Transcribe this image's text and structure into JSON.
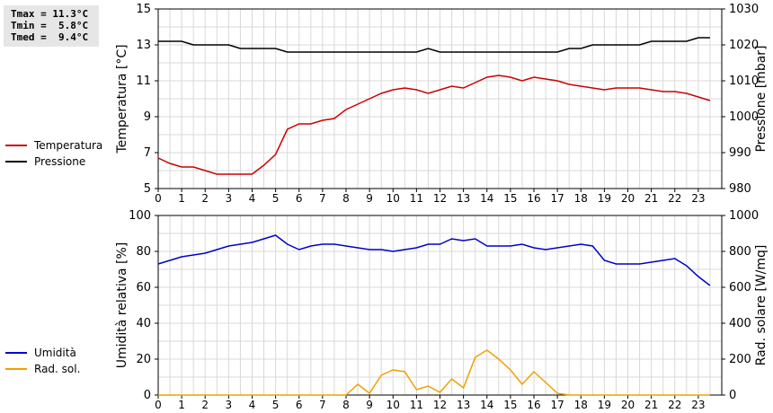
{
  "stats": {
    "tmax": "Tmax = 11.3°C",
    "tmin": "Tmin =  5.8°C",
    "tmed": "Tmed =  9.4°C"
  },
  "legend_top": [
    {
      "label": "Temperatura",
      "color": "#cc0000"
    },
    {
      "label": "Pressione",
      "color": "#000000"
    }
  ],
  "legend_bottom": [
    {
      "label": "Umidità",
      "color": "#0000cc"
    },
    {
      "label": "Rad. sol.",
      "color": "#f0a000"
    }
  ],
  "chart_data": [
    {
      "type": "line",
      "ylabel": "Temperatura [°C]",
      "y2label": "Pressione [mbar]",
      "xlim": [
        0,
        24
      ],
      "ylim": [
        5,
        15
      ],
      "y2lim": [
        980,
        1030
      ],
      "x_ticks": [
        "0",
        "1",
        "2",
        "3",
        "4",
        "5",
        "6",
        "7",
        "8",
        "9",
        "10",
        "11",
        "12",
        "13",
        "14",
        "15",
        "16",
        "17",
        "18",
        "19",
        "20",
        "21",
        "22",
        "23"
      ],
      "y_ticks": [
        "5",
        "7",
        "9",
        "11",
        "13",
        "15"
      ],
      "y2_ticks": [
        "980",
        "990",
        "1000",
        "1010",
        "1020",
        "1030"
      ],
      "grid": true,
      "series": [
        {
          "name": "Temperatura",
          "axis": "left",
          "color": "#cc0000",
          "x": [
            0,
            0.5,
            1,
            1.5,
            2,
            2.5,
            3,
            3.5,
            4,
            4.5,
            5,
            5.5,
            6,
            6.5,
            7,
            7.5,
            8,
            8.5,
            9,
            9.5,
            10,
            10.5,
            11,
            11.5,
            12,
            12.5,
            13,
            13.5,
            14,
            14.5,
            15,
            15.5,
            16,
            16.5,
            17,
            17.5,
            18,
            18.5,
            19,
            19.5,
            20,
            20.5,
            21,
            21.5,
            22,
            22.5,
            23,
            23.5
          ],
          "values": [
            6.7,
            6.4,
            6.2,
            6.2,
            6.0,
            5.8,
            5.8,
            5.8,
            5.8,
            6.3,
            6.9,
            8.3,
            8.6,
            8.6,
            8.8,
            8.9,
            9.4,
            9.7,
            10.0,
            10.3,
            10.5,
            10.6,
            10.5,
            10.3,
            10.5,
            10.7,
            10.6,
            10.9,
            11.2,
            11.3,
            11.2,
            11.0,
            11.2,
            11.1,
            11.0,
            10.8,
            10.7,
            10.6,
            10.5,
            10.6,
            10.6,
            10.6,
            10.5,
            10.4,
            10.4,
            10.3,
            10.1,
            9.9
          ]
        },
        {
          "name": "Pressione",
          "axis": "right",
          "color": "#000000",
          "x": [
            0,
            0.5,
            1,
            1.5,
            2,
            2.5,
            3,
            3.5,
            4,
            4.5,
            5,
            5.5,
            6,
            6.5,
            7,
            7.5,
            8,
            8.5,
            9,
            9.5,
            10,
            10.5,
            11,
            11.5,
            12,
            12.5,
            13,
            13.5,
            14,
            14.5,
            15,
            15.5,
            16,
            16.5,
            17,
            17.5,
            18,
            18.5,
            19,
            19.5,
            20,
            20.5,
            21,
            21.5,
            22,
            22.5,
            23,
            23.5
          ],
          "values": [
            1021,
            1021,
            1021,
            1020,
            1020,
            1020,
            1020,
            1019,
            1019,
            1019,
            1019,
            1018,
            1018,
            1018,
            1018,
            1018,
            1018,
            1018,
            1018,
            1018,
            1018,
            1018,
            1018,
            1019,
            1018,
            1018,
            1018,
            1018,
            1018,
            1018,
            1018,
            1018,
            1018,
            1018,
            1018,
            1019,
            1019,
            1020,
            1020,
            1020,
            1020,
            1020,
            1021,
            1021,
            1021,
            1021,
            1022,
            1022
          ]
        }
      ]
    },
    {
      "type": "line",
      "ylabel": "Umidità relativa [%]",
      "y2label": "Rad. solare [W/mq]",
      "xlim": [
        0,
        24
      ],
      "ylim": [
        0,
        100
      ],
      "y2lim": [
        0,
        1000
      ],
      "x_ticks": [
        "0",
        "1",
        "2",
        "3",
        "4",
        "5",
        "6",
        "7",
        "8",
        "9",
        "10",
        "11",
        "12",
        "13",
        "14",
        "15",
        "16",
        "17",
        "18",
        "19",
        "20",
        "21",
        "22",
        "23"
      ],
      "y_ticks": [
        "0",
        "20",
        "40",
        "60",
        "80",
        "100"
      ],
      "y2_ticks": [
        "0",
        "200",
        "400",
        "600",
        "800",
        "1000"
      ],
      "grid": true,
      "series": [
        {
          "name": "Umidità",
          "axis": "left",
          "color": "#0000cc",
          "x": [
            0,
            0.5,
            1,
            1.5,
            2,
            2.5,
            3,
            3.5,
            4,
            4.5,
            5,
            5.5,
            6,
            6.5,
            7,
            7.5,
            8,
            8.5,
            9,
            9.5,
            10,
            10.5,
            11,
            11.5,
            12,
            12.5,
            13,
            13.5,
            14,
            14.5,
            15,
            15.5,
            16,
            16.5,
            17,
            17.5,
            18,
            18.5,
            19,
            19.5,
            20,
            20.5,
            21,
            21.5,
            22,
            22.5,
            23,
            23.5
          ],
          "values": [
            73,
            75,
            77,
            78,
            79,
            81,
            83,
            84,
            85,
            87,
            89,
            84,
            81,
            83,
            84,
            84,
            83,
            82,
            81,
            81,
            80,
            81,
            82,
            84,
            84,
            87,
            86,
            87,
            83,
            83,
            83,
            84,
            82,
            81,
            82,
            83,
            84,
            83,
            75,
            73,
            73,
            73,
            74,
            75,
            76,
            72,
            66,
            61
          ]
        },
        {
          "name": "Rad. sol.",
          "axis": "right",
          "color": "#f0a000",
          "x": [
            0,
            0.5,
            1,
            1.5,
            2,
            2.5,
            3,
            3.5,
            4,
            4.5,
            5,
            5.5,
            6,
            6.5,
            7,
            7.5,
            8,
            8.5,
            9,
            9.5,
            10,
            10.5,
            11,
            11.5,
            12,
            12.5,
            13,
            13.5,
            14,
            14.5,
            15,
            15.5,
            16,
            16.5,
            17,
            17.5,
            18,
            18.5,
            19,
            19.5,
            20,
            20.5,
            21,
            21.5,
            22,
            22.5,
            23,
            23.5
          ],
          "values": [
            0,
            0,
            0,
            0,
            0,
            0,
            0,
            0,
            0,
            0,
            0,
            0,
            0,
            0,
            0,
            0,
            0,
            60,
            10,
            110,
            140,
            130,
            30,
            50,
            15,
            90,
            40,
            210,
            250,
            200,
            140,
            60,
            130,
            70,
            10,
            0,
            0,
            0,
            0,
            0,
            0,
            0,
            0,
            0,
            0,
            0,
            0,
            0
          ]
        }
      ]
    }
  ]
}
